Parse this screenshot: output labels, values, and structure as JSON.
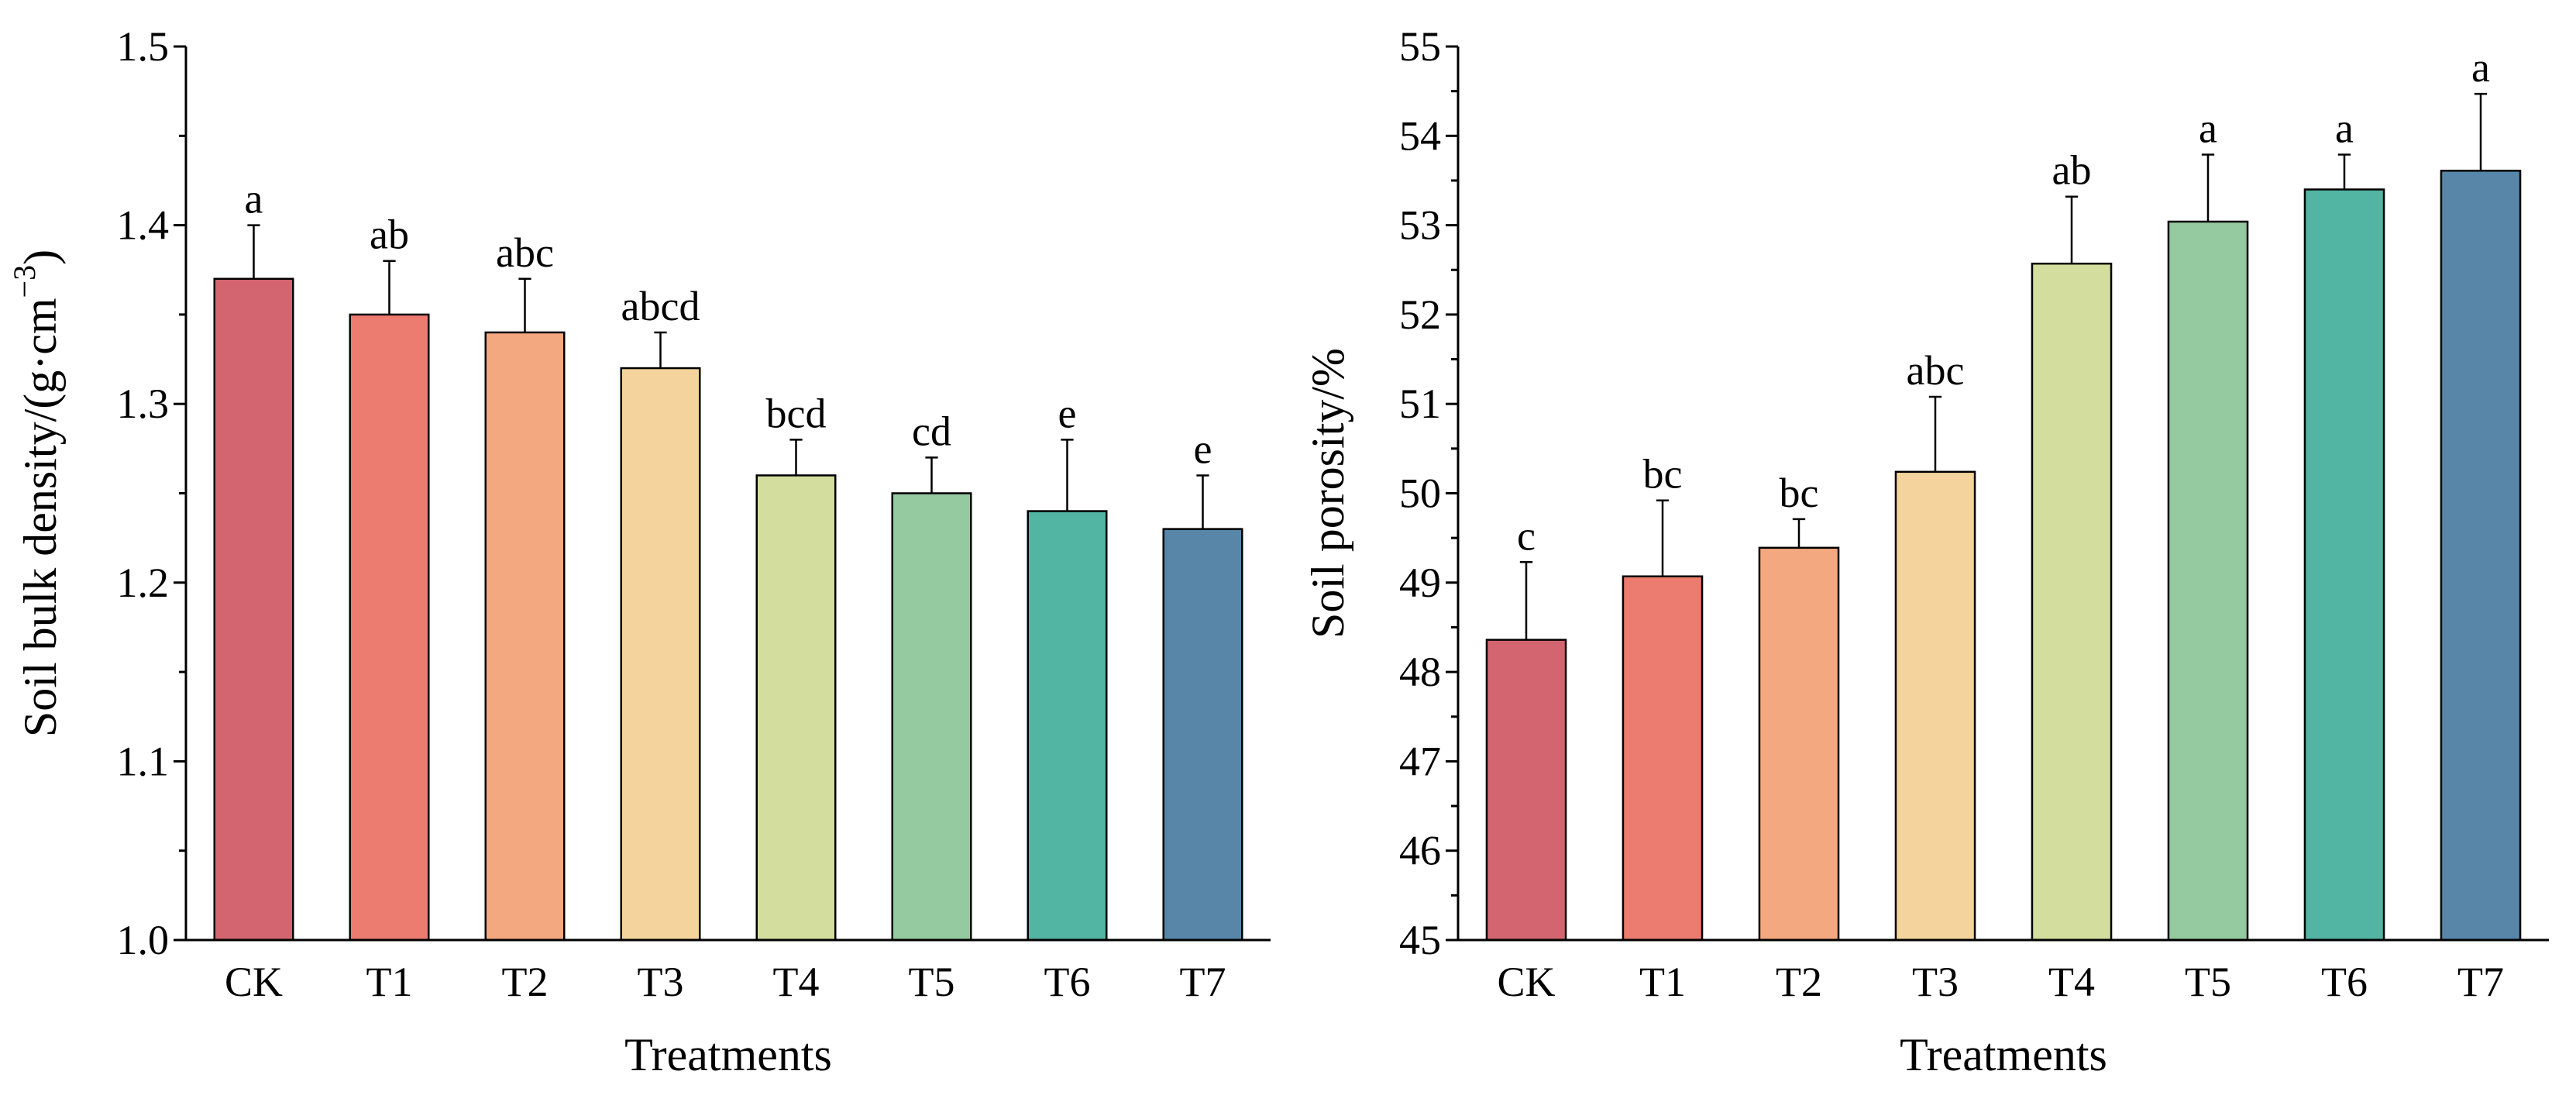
{
  "chart_data": [
    {
      "type": "bar",
      "categories": [
        "CK",
        "T1",
        "T2",
        "T3",
        "T4",
        "T5",
        "T6",
        "T7"
      ],
      "values": [
        1.37,
        1.35,
        1.34,
        1.32,
        1.26,
        1.25,
        1.24,
        1.23
      ],
      "errors": [
        0.03,
        0.03,
        0.03,
        0.02,
        0.02,
        0.02,
        0.04,
        0.03
      ],
      "significance": [
        "a",
        "ab",
        "abc",
        "abcd",
        "bcd",
        "cd",
        "e",
        "e"
      ],
      "colors": [
        "#D2656F",
        "#EC7C70",
        "#F3A880",
        "#F4D49C",
        "#D3DD9E",
        "#95C9A0",
        "#52B4A2",
        "#5786A8"
      ],
      "xlabel": "Treatments",
      "ylabel": "Soil bulk density/(g·cm",
      "ylabel_sup": "−3",
      "ylabel_close": ")",
      "ylim": [
        1.0,
        1.5
      ],
      "yticks": [
        1.0,
        1.1,
        1.2,
        1.3,
        1.4,
        1.5
      ],
      "ytick_labels": [
        "1.0",
        "1.1",
        "1.2",
        "1.3",
        "1.4",
        "1.5"
      ],
      "minor_step": 0.05
    },
    {
      "type": "bar",
      "categories": [
        "CK",
        "T1",
        "T2",
        "T3",
        "T4",
        "T5",
        "T6",
        "T7"
      ],
      "values": [
        48.36,
        49.07,
        49.39,
        50.24,
        52.57,
        53.04,
        53.4,
        53.61
      ],
      "errors": [
        0.87,
        0.85,
        0.32,
        0.84,
        0.75,
        0.75,
        0.39,
        0.86
      ],
      "significance": [
        "c",
        "bc",
        "bc",
        "abc",
        "ab",
        "a",
        "a",
        "a"
      ],
      "colors": [
        "#D2656F",
        "#EC7C70",
        "#F3A880",
        "#F4D49C",
        "#D3DD9E",
        "#95C9A0",
        "#52B4A2",
        "#5786A8"
      ],
      "xlabel": "Treatments",
      "ylabel": "Soil porosity/%",
      "ylim": [
        45,
        55
      ],
      "yticks": [
        45,
        46,
        47,
        48,
        49,
        50,
        51,
        52,
        53,
        54,
        55
      ],
      "ytick_labels": [
        "45",
        "46",
        "47",
        "48",
        "49",
        "50",
        "51",
        "52",
        "53",
        "54",
        "55"
      ],
      "minor_step": 0.5
    }
  ]
}
